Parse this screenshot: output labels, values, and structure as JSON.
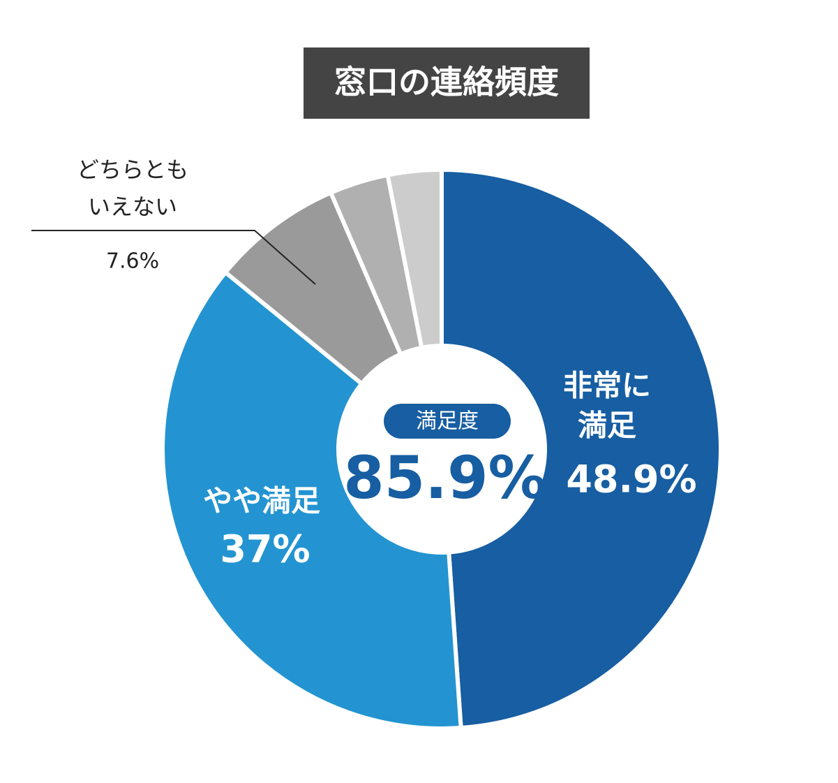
{
  "chart_data": {
    "type": "donut",
    "title": "窓口の連絡頻度",
    "categories": [
      [
        "非常に",
        "満足"
      ],
      [
        "やや満足"
      ],
      [
        "どちらとも",
        "いえない"
      ],
      null,
      null
    ],
    "values": [
      48.9,
      37,
      7.6,
      3.4,
      3.1
    ],
    "value_labels": [
      "48.9%",
      "37%",
      "7.6%",
      null,
      null
    ],
    "colors": [
      "#175ea2",
      "#2394d1",
      "#9a9a9a",
      "#b0b0b0",
      "#cccccc"
    ],
    "center_label": "満足度",
    "center_value": 85.9,
    "center_value_label": "85.9%"
  }
}
